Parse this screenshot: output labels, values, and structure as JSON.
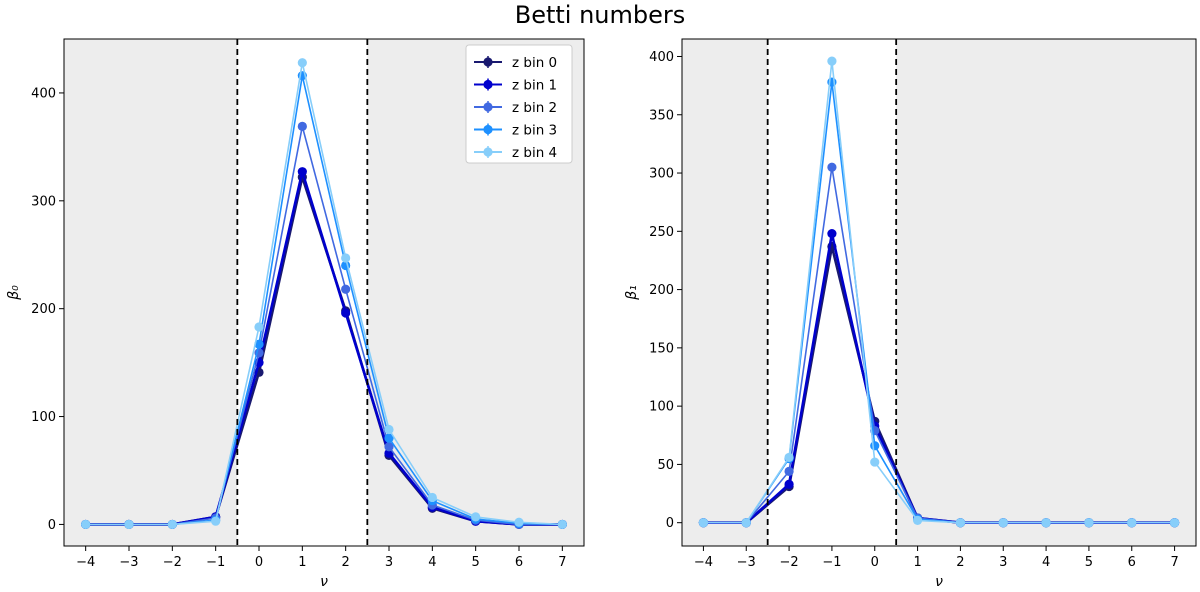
{
  "title": "Betti numbers",
  "chart_data": [
    {
      "type": "line",
      "xlabel": "ν",
      "ylabel": "β₀",
      "xlim": [
        -4.5,
        7.5
      ],
      "ylim": [
        -20,
        450
      ],
      "xticks": [
        -4,
        -3,
        -2,
        -1,
        0,
        1,
        2,
        3,
        4,
        5,
        6,
        7
      ],
      "yticks": [
        0,
        100,
        200,
        300,
        400
      ],
      "unshaded_range": [
        -0.5,
        2.5
      ],
      "vlines": [
        -0.5,
        2.5
      ],
      "x": [
        -4,
        -3,
        -2,
        -1,
        0,
        1,
        2,
        3,
        4,
        5,
        6,
        7
      ],
      "legend_position": "upper right",
      "series": [
        {
          "name": "z bin 0",
          "color": "#191970",
          "values": [
            0,
            0,
            0,
            7,
            141,
            322,
            198,
            64,
            15,
            3,
            0,
            0
          ]
        },
        {
          "name": "z bin 1",
          "color": "#0000cd",
          "values": [
            0,
            0,
            0,
            7,
            150,
            327,
            196,
            66,
            16,
            3,
            0,
            0
          ]
        },
        {
          "name": "z bin 2",
          "color": "#4169e1",
          "values": [
            0,
            0,
            0,
            6,
            159,
            369,
            218,
            72,
            18,
            4,
            0,
            0
          ]
        },
        {
          "name": "z bin 3",
          "color": "#1e90ff",
          "values": [
            0,
            0,
            0,
            4,
            167,
            416,
            240,
            80,
            22,
            5,
            1,
            0
          ]
        },
        {
          "name": "z bin 4",
          "color": "#87cefa",
          "values": [
            0,
            0,
            0,
            3,
            183,
            428,
            247,
            88,
            25,
            7,
            2,
            0
          ]
        }
      ]
    },
    {
      "type": "line",
      "xlabel": "ν",
      "ylabel": "β₁",
      "xlim": [
        -4.5,
        7.5
      ],
      "ylim": [
        -20,
        415
      ],
      "xticks": [
        -4,
        -3,
        -2,
        -1,
        0,
        1,
        2,
        3,
        4,
        5,
        6,
        7
      ],
      "yticks": [
        0,
        50,
        100,
        150,
        200,
        250,
        300,
        350,
        400
      ],
      "unshaded_range": [
        -2.5,
        0.5
      ],
      "vlines": [
        -2.5,
        0.5
      ],
      "x": [
        -4,
        -3,
        -2,
        -1,
        0,
        1,
        2,
        3,
        4,
        5,
        6,
        7
      ],
      "series": [
        {
          "name": "z bin 0",
          "color": "#191970",
          "values": [
            0,
            0,
            31,
            237,
            87,
            4,
            0,
            0,
            0,
            0,
            0,
            0
          ]
        },
        {
          "name": "z bin 1",
          "color": "#0000cd",
          "values": [
            0,
            0,
            33,
            248,
            83,
            4,
            0,
            0,
            0,
            0,
            0,
            0
          ]
        },
        {
          "name": "z bin 2",
          "color": "#4169e1",
          "values": [
            0,
            0,
            44,
            305,
            79,
            4,
            0,
            0,
            0,
            0,
            0,
            0
          ]
        },
        {
          "name": "z bin 3",
          "color": "#1e90ff",
          "values": [
            0,
            0,
            55,
            378,
            66,
            3,
            0,
            0,
            0,
            0,
            0,
            0
          ]
        },
        {
          "name": "z bin 4",
          "color": "#87cefa",
          "values": [
            0,
            0,
            56,
            396,
            52,
            2,
            0,
            0,
            0,
            0,
            0,
            0
          ]
        }
      ]
    }
  ]
}
